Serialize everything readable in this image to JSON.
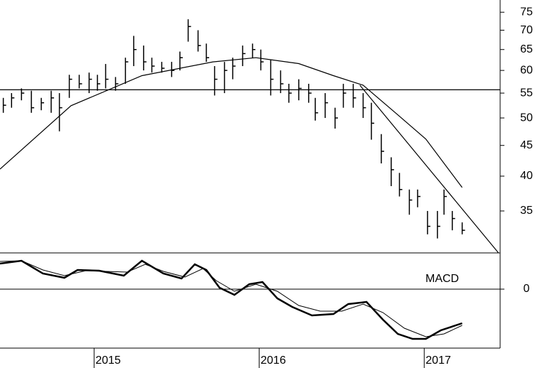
{
  "chart_data": [
    {
      "type": "ohlc",
      "log": true,
      "color": "#000000",
      "xlim": [
        2014.43,
        2017.46
      ],
      "xticks": [
        2015,
        2016,
        2017
      ],
      "ylim": [
        29.8,
        78.6
      ],
      "yticks": [
        35,
        40,
        45,
        50,
        55,
        60,
        65,
        70,
        75
      ],
      "x": [
        2014.45,
        2014.5,
        2014.56,
        2014.62,
        2014.68,
        2014.74,
        2014.79,
        2014.85,
        2014.91,
        2014.97,
        2015.02,
        2015.07,
        2015.13,
        2015.19,
        2015.24,
        2015.3,
        2015.35,
        2015.41,
        2015.47,
        2015.52,
        2015.57,
        2015.63,
        2015.68,
        2015.73,
        2015.79,
        2015.84,
        2015.9,
        2015.96,
        2016.01,
        2016.07,
        2016.13,
        2016.18,
        2016.24,
        2016.3,
        2016.34,
        2016.4,
        2016.46,
        2016.51,
        2016.57,
        2016.63,
        2016.68,
        2016.74,
        2016.8,
        2016.85,
        2016.91,
        2016.96,
        2017.02,
        2017.08,
        2017.12,
        2017.17,
        2017.23
      ],
      "high": [
        54,
        55,
        56,
        55.5,
        54,
        55.5,
        55,
        59,
        59,
        59.5,
        59,
        61.5,
        58.5,
        63,
        68.5,
        66,
        63,
        62,
        62,
        64.5,
        73,
        70,
        66.5,
        61,
        62,
        63,
        66,
        66.5,
        65,
        62.5,
        60,
        57,
        58,
        57,
        54,
        55,
        52,
        57,
        57,
        55,
        53,
        47,
        43,
        40.5,
        38,
        38,
        35,
        35,
        38,
        35,
        33.5
      ],
      "low": [
        51,
        52,
        53.5,
        51,
        51.5,
        51,
        47.5,
        54,
        56,
        55,
        55.5,
        56,
        55.5,
        57,
        61,
        60,
        59.5,
        59.5,
        58.5,
        60,
        67,
        64.5,
        62,
        54.5,
        55,
        58,
        61,
        63,
        60,
        54.5,
        55,
        53,
        53.5,
        53,
        49.5,
        50,
        48,
        52,
        52,
        50,
        46,
        42,
        38.5,
        37,
        34.5,
        35.5,
        32,
        31.5,
        34.5,
        32.5,
        32
      ],
      "close": [
        52.5,
        54,
        55,
        52,
        53,
        54,
        52,
        58,
        57,
        58,
        57,
        58,
        57,
        62,
        65,
        62,
        61,
        60.5,
        60,
        63,
        71,
        66,
        63,
        58,
        60,
        61,
        64,
        65,
        62,
        58,
        57,
        55,
        56,
        55,
        51,
        53,
        50,
        55,
        54,
        52,
        49,
        44,
        41,
        38,
        36.5,
        37,
        33,
        33,
        37,
        34,
        32.5
      ],
      "series": [
        {
          "x": [
            2014.43,
            2014.86,
            2015.29,
            2015.72,
            2015.98,
            2016.24,
            2016.45,
            2016.63,
            2016.84,
            2017.01,
            2017.23
          ],
          "values": [
            41.1,
            52.4,
            58.8,
            62,
            63,
            61.6,
            58.8,
            56.7,
            50.6,
            46.1,
            38.3
          ]
        },
        {
          "x": [
            2016.61,
            2017.45
          ],
          "values": [
            56.7,
            29.8
          ]
        },
        {
          "x": [
            2014.43,
            2017.46
          ],
          "values": [
            55.7,
            55.7
          ]
        }
      ]
    },
    {
      "type": "line",
      "label": "MACD",
      "color": "#000000",
      "xlim": [
        2014.43,
        2017.46
      ],
      "ylim": [
        -8.3,
        5.1
      ],
      "yticks": [
        0
      ],
      "series": [
        {
          "width": 2.5,
          "x": [
            2014.43,
            2014.56,
            2014.69,
            2014.82,
            2014.9,
            2015.03,
            2015.18,
            2015.29,
            2015.42,
            2015.53,
            2015.61,
            2015.68,
            2015.76,
            2015.85,
            2015.94,
            2016.02,
            2016.11,
            2016.2,
            2016.32,
            2016.45,
            2016.54,
            2016.65,
            2016.75,
            2016.84,
            2016.93,
            2017.01,
            2017.1,
            2017.23
          ],
          "values": [
            3.6,
            4,
            2.2,
            1.6,
            2.7,
            2.6,
            1.9,
            4,
            2.2,
            1.5,
            3.5,
            2.7,
            0.2,
            -0.8,
            0.7,
            1,
            -1.3,
            -2.5,
            -3.7,
            -3.5,
            -2.1,
            -1.8,
            -4.3,
            -6.3,
            -7,
            -7,
            -5.8,
            -4.8
          ]
        },
        {
          "width": 1,
          "x": [
            2014.43,
            2014.56,
            2014.69,
            2014.82,
            2014.95,
            2015.07,
            2015.2,
            2015.31,
            2015.42,
            2015.55,
            2015.66,
            2015.74,
            2015.85,
            2015.98,
            2016.11,
            2016.24,
            2016.37,
            2016.5,
            2016.63,
            2016.75,
            2016.88,
            2017.01,
            2017.12,
            2017.23
          ],
          "values": [
            3.9,
            4,
            2.7,
            1.9,
            2.6,
            2.5,
            2.4,
            3.5,
            2.5,
            1.7,
            2.9,
            1.2,
            -0.3,
            0.7,
            -0.3,
            -2.3,
            -3.1,
            -3.1,
            -2.1,
            -3.3,
            -5.5,
            -6.7,
            -6.3,
            -5.1
          ]
        }
      ]
    }
  ]
}
